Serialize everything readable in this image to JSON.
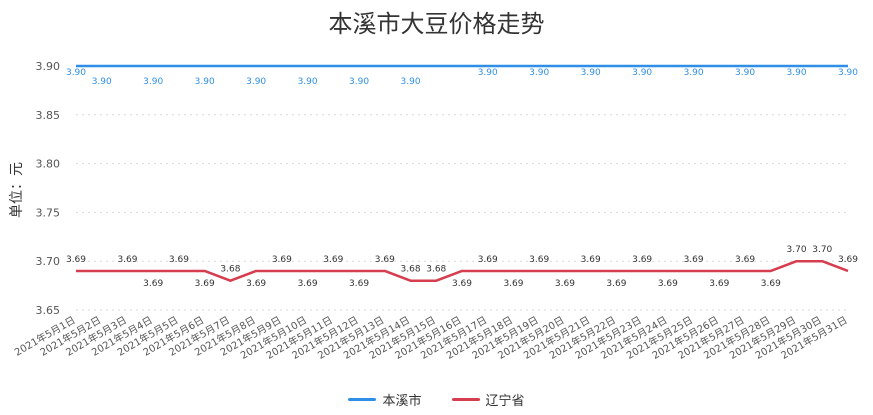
{
  "chart_data": {
    "type": "line",
    "title": "本溪市大豆价格走势",
    "ylabel": "单位：元",
    "ylim": [
      3.65,
      3.9
    ],
    "yticks": [
      "3.90",
      "3.85",
      "3.80",
      "3.75",
      "3.70",
      "3.65"
    ],
    "grid": true,
    "legend_position": "bottom",
    "categories": [
      "2021年5月1日",
      "2021年5月2日",
      "2021年5月3日",
      "2021年5月4日",
      "2021年5月5日",
      "2021年5月6日",
      "2021年5月7日",
      "2021年5月8日",
      "2021年5月9日",
      "2021年5月10日",
      "2021年5月11日",
      "2021年5月12日",
      "2021年5月13日",
      "2021年5月14日",
      "2021年5月15日",
      "2021年5月16日",
      "2021年5月17日",
      "2021年5月18日",
      "2021年5月19日",
      "2021年5月20日",
      "2021年5月21日",
      "2021年5月22日",
      "2021年5月23日",
      "2021年5月24日",
      "2021年5月25日",
      "2021年5月26日",
      "2021年5月27日",
      "2021年5月28日",
      "2021年5月29日",
      "2021年5月30日",
      "2021年5月31日"
    ],
    "series": [
      {
        "name": "本溪市",
        "color": "#2f8fe6",
        "values": [
          3.9,
          3.9,
          3.9,
          3.9,
          3.9,
          3.9,
          3.9,
          3.9,
          3.9,
          3.9,
          3.9,
          3.9,
          3.9,
          3.9,
          3.9,
          3.9,
          3.9,
          3.9,
          3.9,
          3.9,
          3.9,
          3.9,
          3.9,
          3.9,
          3.9,
          3.9,
          3.9,
          3.9,
          3.9,
          3.9,
          3.9
        ],
        "labels": [
          "3.90",
          "3.90",
          "",
          "3.90",
          "",
          "3.90",
          "",
          "3.90",
          "",
          "3.90",
          "",
          "3.90",
          "",
          "3.90",
          "",
          "",
          "3.90",
          "",
          "3.90",
          "",
          "3.90",
          "",
          "3.90",
          "",
          "3.90",
          "",
          "3.90",
          "",
          "3.90",
          "",
          "3.90"
        ]
      },
      {
        "name": "辽宁省",
        "color": "#d63d4f",
        "values": [
          3.69,
          3.69,
          3.69,
          3.69,
          3.69,
          3.69,
          3.68,
          3.69,
          3.69,
          3.69,
          3.69,
          3.69,
          3.69,
          3.68,
          3.68,
          3.69,
          3.69,
          3.69,
          3.69,
          3.69,
          3.69,
          3.69,
          3.69,
          3.69,
          3.69,
          3.69,
          3.69,
          3.69,
          3.7,
          3.7,
          3.69
        ],
        "labels": [
          "3.69",
          "",
          "3.69",
          "3.69",
          "3.69",
          "3.69",
          "3.68",
          "3.69",
          "3.69",
          "3.69",
          "3.69",
          "3.69",
          "3.69",
          "3.68",
          "3.68",
          "3.69",
          "3.69",
          "3.69",
          "3.69",
          "3.69",
          "3.69",
          "3.69",
          "3.69",
          "3.69",
          "3.69",
          "3.69",
          "3.69",
          "3.69",
          "3.70",
          "3.70",
          "3.69"
        ]
      }
    ]
  }
}
